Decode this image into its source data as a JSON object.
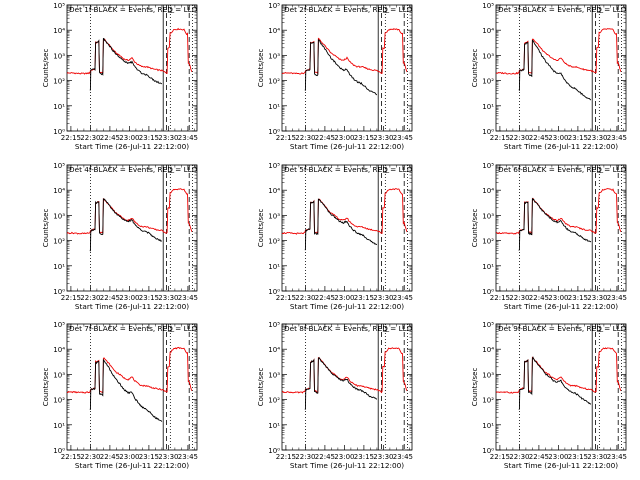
{
  "colors": {
    "events": "#000000",
    "lld": "#ee0000",
    "axes": "#000000",
    "background": "#ffffff"
  },
  "shared": {
    "xticks": [
      "22:15",
      "22:30",
      "22:45",
      "23:00",
      "23:15",
      "23:30",
      "23:45"
    ],
    "xtick_minutes": [
      15,
      30,
      45,
      60,
      75,
      90,
      105
    ],
    "xlabel": "Start Time (26-Jul-11 22:12:00)",
    "ylabel": "Counts/sec",
    "yticks": [
      "10⁰",
      "10¹",
      "10²",
      "10³",
      "10⁴",
      "10⁵"
    ],
    "ylim_log10": [
      0,
      5
    ],
    "xlim_minutes_after_22_00": [
      12,
      112
    ],
    "y_scale": "log",
    "vlines": [
      {
        "minute": 30,
        "style": "dotted"
      },
      {
        "minute": 86,
        "style": "solid"
      },
      {
        "minute": 88.5,
        "style": "dashed"
      },
      {
        "minute": 91.5,
        "style": "dotted"
      },
      {
        "minute": 106,
        "style": "dashed"
      },
      {
        "minute": 108.5,
        "style": "dotted"
      }
    ],
    "marker": {
      "minute": 92,
      "symbol": "⊥",
      "label": ""
    }
  },
  "chart_data": [
    {
      "type": "line",
      "title": "Det 1f-BLACK = Events, RED = LLD",
      "series": [
        {
          "name": "Events",
          "color": "#000000"
        },
        {
          "name": "LLD",
          "color": "#ee0000"
        }
      ],
      "events_offset_log10": [
        0,
        0,
        -0.05,
        -0.12,
        -0.22,
        -0.3,
        -0.35
      ]
    },
    {
      "type": "line",
      "title": "Det 2f-BLACK = Events, RED = LLD",
      "series": [
        {
          "name": "Events",
          "color": "#000000"
        },
        {
          "name": "LLD",
          "color": "#ee0000"
        }
      ],
      "events_offset_log10": [
        0,
        -0.05,
        -0.2,
        -0.4,
        -0.55,
        -0.7,
        -0.8
      ]
    },
    {
      "type": "line",
      "title": "Det 3f-BLACK = Events, RED = LLD",
      "series": [
        {
          "name": "Events",
          "color": "#000000"
        },
        {
          "name": "LLD",
          "color": "#ee0000"
        }
      ],
      "events_offset_log10": [
        0,
        -0.08,
        -0.3,
        -0.55,
        -0.75,
        -0.9,
        -1.0
      ]
    },
    {
      "type": "line",
      "title": "Det 4f-BLACK = Events, RED = LLD",
      "series": [
        {
          "name": "Events",
          "color": "#000000"
        },
        {
          "name": "LLD",
          "color": "#ee0000"
        }
      ],
      "events_offset_log10": [
        0,
        0,
        -0.02,
        -0.05,
        -0.1,
        -0.18,
        -0.25
      ]
    },
    {
      "type": "line",
      "title": "Det 5f-BLACK = Events, RED = LLD",
      "series": [
        {
          "name": "Events",
          "color": "#000000"
        },
        {
          "name": "LLD",
          "color": "#ee0000"
        }
      ],
      "events_offset_log10": [
        0,
        0,
        -0.05,
        -0.1,
        -0.2,
        -0.3,
        -0.4
      ]
    },
    {
      "type": "line",
      "title": "Det 6f-BLACK = Events, RED = LLD",
      "series": [
        {
          "name": "Events",
          "color": "#000000"
        },
        {
          "name": "LLD",
          "color": "#ee0000"
        }
      ],
      "events_offset_log10": [
        0,
        0,
        -0.03,
        -0.08,
        -0.15,
        -0.22,
        -0.3
      ]
    },
    {
      "type": "line",
      "title": "Det 7f-BLACK = Events, RED = LLD",
      "series": [
        {
          "name": "Events",
          "color": "#000000"
        },
        {
          "name": "LLD",
          "color": "#ee0000"
        }
      ],
      "events_offset_log10": [
        0,
        -0.08,
        -0.3,
        -0.55,
        -0.8,
        -1.0,
        -1.15
      ]
    },
    {
      "type": "line",
      "title": "Det 8f-BLACK = Events, RED = LLD",
      "series": [
        {
          "name": "Events",
          "color": "#000000"
        },
        {
          "name": "LLD",
          "color": "#ee0000"
        }
      ],
      "events_offset_log10": [
        0,
        0,
        -0.02,
        -0.05,
        -0.1,
        -0.15,
        -0.2
      ]
    },
    {
      "type": "line",
      "title": "Det 9f-BLACK = Events, RED = LLD",
      "series": [
        {
          "name": "Events",
          "color": "#000000"
        },
        {
          "name": "LLD",
          "color": "#ee0000"
        }
      ],
      "events_offset_log10": [
        0,
        0,
        -0.05,
        -0.12,
        -0.2,
        -0.3,
        -0.45
      ]
    }
  ]
}
